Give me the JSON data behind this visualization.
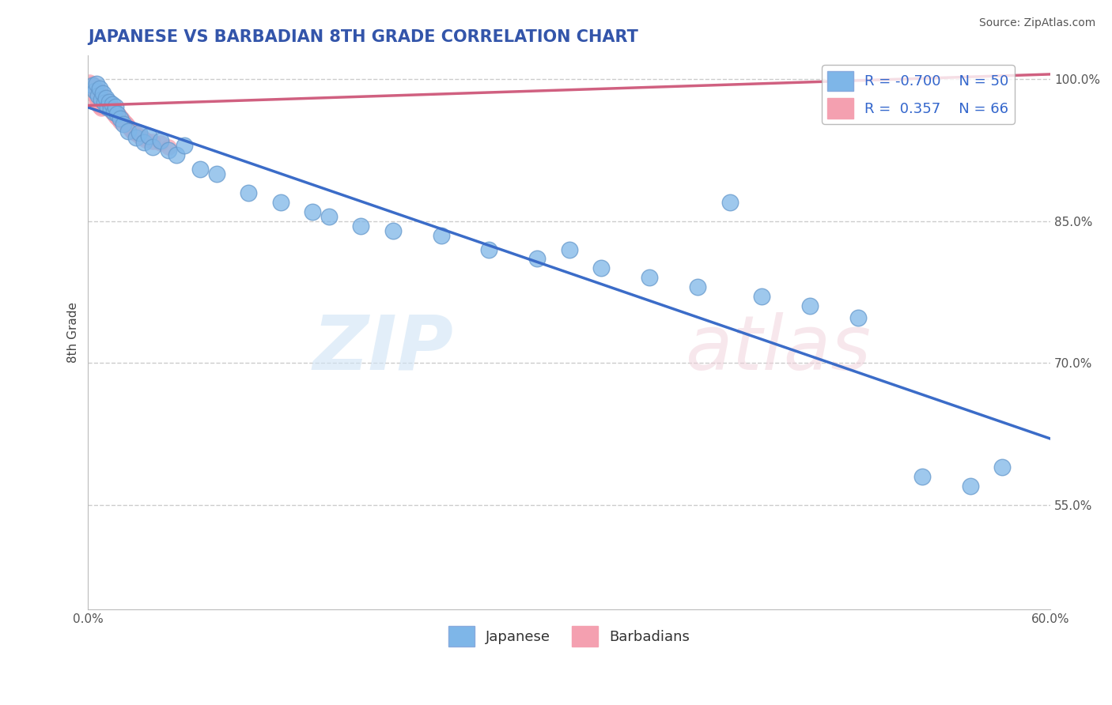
{
  "title": "JAPANESE VS BARBADIAN 8TH GRADE CORRELATION CHART",
  "source": "Source: ZipAtlas.com",
  "ylabel": "8th Grade",
  "xlim": [
    0.0,
    0.6
  ],
  "ylim": [
    0.44,
    1.025
  ],
  "xticks": [
    0.0,
    0.1,
    0.2,
    0.3,
    0.4,
    0.5,
    0.6
  ],
  "xticklabels": [
    "0.0%",
    "",
    "",
    "",
    "",
    "",
    "60.0%"
  ],
  "yticks": [
    0.55,
    0.7,
    0.85,
    1.0
  ],
  "yticklabels": [
    "55.0%",
    "70.0%",
    "85.0%",
    "100.0%"
  ],
  "grid_color": "#cccccc",
  "background_color": "#ffffff",
  "japanese_R": -0.7,
  "japanese_N": 50,
  "barbadian_R": 0.357,
  "barbadian_N": 66,
  "japanese_color": "#7EB6E8",
  "barbadian_color": "#F4A0B0",
  "japanese_line_color": "#3B6CC8",
  "barbadian_line_color": "#D06080",
  "title_color": "#3355AA",
  "legend_color": "#3366CC",
  "japanese_line": [
    [
      0.0,
      0.97
    ],
    [
      0.6,
      0.62
    ]
  ],
  "barbadian_line": [
    [
      0.0,
      0.972
    ],
    [
      0.6,
      1.005
    ]
  ],
  "japanese_scatter": [
    [
      0.003,
      0.993
    ],
    [
      0.004,
      0.987
    ],
    [
      0.005,
      0.995
    ],
    [
      0.006,
      0.982
    ],
    [
      0.007,
      0.99
    ],
    [
      0.008,
      0.978
    ],
    [
      0.009,
      0.985
    ],
    [
      0.01,
      0.975
    ],
    [
      0.011,
      0.98
    ],
    [
      0.012,
      0.97
    ],
    [
      0.013,
      0.976
    ],
    [
      0.014,
      0.968
    ],
    [
      0.015,
      0.973
    ],
    [
      0.016,
      0.965
    ],
    [
      0.017,
      0.971
    ],
    [
      0.018,
      0.963
    ],
    [
      0.02,
      0.958
    ],
    [
      0.022,
      0.952
    ],
    [
      0.025,
      0.945
    ],
    [
      0.03,
      0.938
    ],
    [
      0.032,
      0.943
    ],
    [
      0.035,
      0.933
    ],
    [
      0.038,
      0.94
    ],
    [
      0.04,
      0.928
    ],
    [
      0.045,
      0.935
    ],
    [
      0.05,
      0.925
    ],
    [
      0.055,
      0.92
    ],
    [
      0.06,
      0.93
    ],
    [
      0.07,
      0.905
    ],
    [
      0.08,
      0.9
    ],
    [
      0.1,
      0.88
    ],
    [
      0.12,
      0.87
    ],
    [
      0.14,
      0.86
    ],
    [
      0.15,
      0.855
    ],
    [
      0.17,
      0.845
    ],
    [
      0.19,
      0.84
    ],
    [
      0.22,
      0.835
    ],
    [
      0.25,
      0.82
    ],
    [
      0.28,
      0.81
    ],
    [
      0.3,
      0.82
    ],
    [
      0.32,
      0.8
    ],
    [
      0.35,
      0.79
    ],
    [
      0.38,
      0.78
    ],
    [
      0.42,
      0.77
    ],
    [
      0.45,
      0.76
    ],
    [
      0.48,
      0.748
    ],
    [
      0.4,
      0.87
    ],
    [
      0.52,
      0.58
    ],
    [
      0.55,
      0.57
    ],
    [
      0.57,
      0.59
    ]
  ],
  "barbadian_scatter": [
    [
      0.001,
      0.997
    ],
    [
      0.002,
      0.993
    ],
    [
      0.002,
      0.988
    ],
    [
      0.003,
      0.995
    ],
    [
      0.003,
      0.99
    ],
    [
      0.003,
      0.985
    ],
    [
      0.004,
      0.992
    ],
    [
      0.004,
      0.987
    ],
    [
      0.004,
      0.982
    ],
    [
      0.005,
      0.99
    ],
    [
      0.005,
      0.985
    ],
    [
      0.005,
      0.98
    ],
    [
      0.005,
      0.975
    ],
    [
      0.006,
      0.988
    ],
    [
      0.006,
      0.983
    ],
    [
      0.006,
      0.978
    ],
    [
      0.006,
      0.973
    ],
    [
      0.007,
      0.986
    ],
    [
      0.007,
      0.981
    ],
    [
      0.007,
      0.976
    ],
    [
      0.007,
      0.971
    ],
    [
      0.008,
      0.984
    ],
    [
      0.008,
      0.979
    ],
    [
      0.008,
      0.974
    ],
    [
      0.008,
      0.969
    ],
    [
      0.009,
      0.982
    ],
    [
      0.009,
      0.977
    ],
    [
      0.009,
      0.972
    ],
    [
      0.01,
      0.98
    ],
    [
      0.01,
      0.975
    ],
    [
      0.01,
      0.97
    ],
    [
      0.011,
      0.978
    ],
    [
      0.011,
      0.973
    ],
    [
      0.012,
      0.976
    ],
    [
      0.012,
      0.971
    ],
    [
      0.013,
      0.974
    ],
    [
      0.013,
      0.969
    ],
    [
      0.014,
      0.972
    ],
    [
      0.014,
      0.967
    ],
    [
      0.015,
      0.97
    ],
    [
      0.015,
      0.965
    ],
    [
      0.016,
      0.968
    ],
    [
      0.016,
      0.963
    ],
    [
      0.017,
      0.966
    ],
    [
      0.017,
      0.961
    ],
    [
      0.018,
      0.964
    ],
    [
      0.018,
      0.959
    ],
    [
      0.019,
      0.962
    ],
    [
      0.019,
      0.957
    ],
    [
      0.02,
      0.96
    ],
    [
      0.02,
      0.955
    ],
    [
      0.021,
      0.958
    ],
    [
      0.022,
      0.956
    ],
    [
      0.023,
      0.954
    ],
    [
      0.024,
      0.952
    ],
    [
      0.025,
      0.95
    ],
    [
      0.026,
      0.948
    ],
    [
      0.027,
      0.946
    ],
    [
      0.028,
      0.944
    ],
    [
      0.03,
      0.942
    ],
    [
      0.032,
      0.94
    ],
    [
      0.034,
      0.938
    ],
    [
      0.036,
      0.936
    ],
    [
      0.04,
      0.934
    ],
    [
      0.045,
      0.932
    ],
    [
      0.05,
      0.928
    ]
  ]
}
